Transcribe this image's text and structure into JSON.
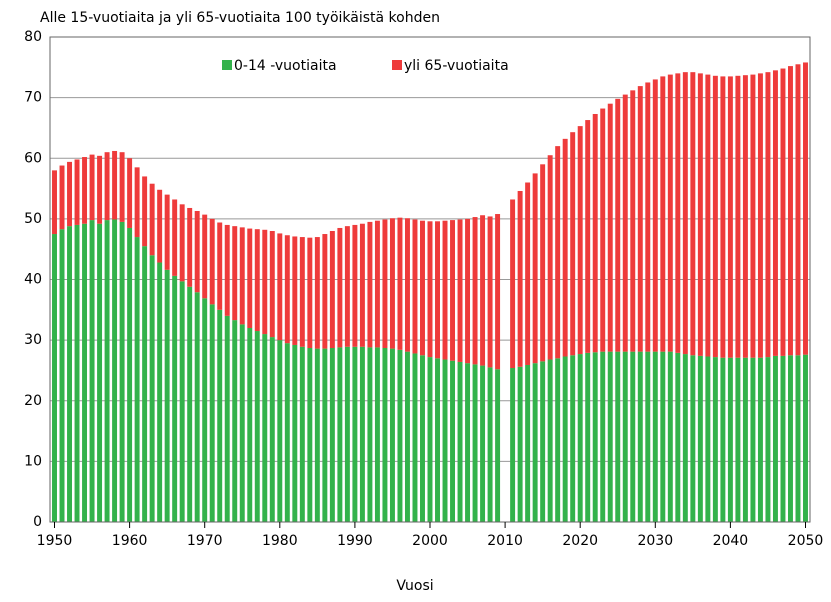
{
  "chart_data": {
    "type": "bar",
    "stacked": true,
    "title": "Alle 15-vuotiaita ja yli 65-vuotiaita 100 työikäistä kohden",
    "x_label": "Vuosi",
    "x": [
      1950,
      1951,
      1952,
      1953,
      1954,
      1955,
      1956,
      1957,
      1958,
      1959,
      1960,
      1961,
      1962,
      1963,
      1964,
      1965,
      1966,
      1967,
      1968,
      1969,
      1970,
      1971,
      1972,
      1973,
      1974,
      1975,
      1976,
      1977,
      1978,
      1979,
      1980,
      1981,
      1982,
      1983,
      1984,
      1985,
      1986,
      1987,
      1988,
      1989,
      1990,
      1991,
      1992,
      1993,
      1994,
      1995,
      1996,
      1997,
      1998,
      1999,
      2000,
      2001,
      2002,
      2003,
      2004,
      2005,
      2006,
      2007,
      2008,
      2009,
      2010,
      2011,
      2012,
      2013,
      2014,
      2015,
      2016,
      2017,
      2018,
      2019,
      2020,
      2021,
      2022,
      2023,
      2024,
      2025,
      2026,
      2027,
      2028,
      2029,
      2030,
      2031,
      2032,
      2033,
      2034,
      2035,
      2036,
      2037,
      2038,
      2039,
      2040,
      2041,
      2042,
      2043,
      2044,
      2045,
      2046,
      2047,
      2048,
      2049,
      2050
    ],
    "series": [
      {
        "name": "0-14 -vuotiaita",
        "color": "#33b24b",
        "values": [
          47.5,
          48.3,
          48.8,
          49,
          49.2,
          49.8,
          49.2,
          49.8,
          49.9,
          49.5,
          48.5,
          47,
          45.5,
          44,
          42.8,
          41.6,
          40.6,
          39.7,
          38.8,
          37.9,
          36.9,
          35.9,
          35,
          34,
          33.3,
          32.6,
          32,
          31.5,
          31,
          30.5,
          30,
          29.5,
          29.2,
          28.9,
          28.7,
          28.6,
          28.6,
          28.7,
          28.8,
          28.9,
          28.9,
          28.9,
          28.8,
          28.8,
          28.7,
          28.6,
          28.4,
          28.1,
          27.8,
          27.5,
          27.2,
          27,
          26.8,
          26.6,
          26.4,
          26.2,
          26,
          25.8,
          25.5,
          25.2,
          null,
          25.4,
          25.6,
          25.9,
          26.2,
          26.5,
          26.8,
          27,
          27.3,
          27.5,
          27.7,
          27.9,
          28,
          28.1,
          28.1,
          28.1,
          28.1,
          28.1,
          28.1,
          28.1,
          28.1,
          28.1,
          28.1,
          27.9,
          27.7,
          27.5,
          27.4,
          27.3,
          27.2,
          27.1,
          27.1,
          27.1,
          27.1,
          27.1,
          27.1,
          27.2,
          27.4,
          27.4,
          27.5,
          27.5,
          27.6
        ]
      },
      {
        "name": "yli 65-vuotiaita",
        "color": "#ee3b3b",
        "values": [
          10.5,
          10.5,
          10.6,
          10.8,
          11,
          10.8,
          11.2,
          11.2,
          11.3,
          11.5,
          11.5,
          11.5,
          11.5,
          11.8,
          12,
          12.4,
          12.6,
          12.7,
          13,
          13.4,
          13.8,
          14.1,
          14.4,
          15,
          15.5,
          16,
          16.4,
          16.8,
          17.2,
          17.5,
          17.6,
          17.8,
          17.9,
          18.1,
          18.2,
          18.4,
          18.9,
          19.3,
          19.7,
          19.9,
          20.1,
          20.3,
          20.7,
          20.9,
          21.2,
          21.5,
          21.8,
          22,
          22.1,
          22.2,
          22.4,
          22.6,
          22.9,
          23.2,
          23.5,
          23.8,
          24.3,
          24.8,
          24.9,
          25.6,
          null,
          27.8,
          29,
          30.1,
          31.3,
          32.5,
          33.7,
          35,
          35.9,
          36.8,
          37.6,
          38.4,
          39.3,
          40.1,
          40.9,
          41.7,
          42.4,
          43.1,
          43.8,
          44.4,
          44.9,
          45.4,
          45.7,
          46.1,
          46.5,
          46.7,
          46.6,
          46.5,
          46.4,
          46.4,
          46.4,
          46.5,
          46.6,
          46.7,
          46.9,
          47,
          47.1,
          47.4,
          47.7,
          48,
          48.2
        ]
      }
    ],
    "xlim": [
      1949.4,
      2050.6
    ],
    "xticks": [
      1950,
      1960,
      1970,
      1980,
      1990,
      2000,
      2010,
      2020,
      2030,
      2040,
      2050
    ],
    "ylim": [
      0,
      80
    ],
    "yticks": [
      0,
      10,
      20,
      30,
      40,
      50,
      60,
      70,
      80
    ],
    "grid": true
  }
}
